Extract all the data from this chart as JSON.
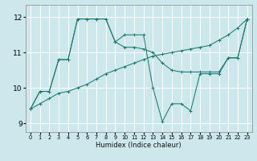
{
  "xlabel": "Humidex (Indice chaleur)",
  "bg_color": "#cce8ed",
  "grid_color": "#ffffff",
  "line_color": "#1e7a6e",
  "xlim": [
    -0.5,
    23.5
  ],
  "ylim": [
    8.75,
    12.35
  ],
  "xticks": [
    0,
    1,
    2,
    3,
    4,
    5,
    6,
    7,
    8,
    9,
    10,
    11,
    12,
    13,
    14,
    15,
    16,
    17,
    18,
    19,
    20,
    21,
    22,
    23
  ],
  "yticks": [
    9,
    10,
    11,
    12
  ],
  "line1_x": [
    0,
    1,
    2,
    3,
    4,
    5,
    6,
    7,
    8,
    9,
    10,
    11,
    12,
    13,
    14,
    15,
    16,
    17,
    18,
    19,
    20,
    21,
    22,
    23
  ],
  "line1_y": [
    9.4,
    9.9,
    9.9,
    10.8,
    10.8,
    11.95,
    11.95,
    11.95,
    11.95,
    11.3,
    11.15,
    11.15,
    11.1,
    11.0,
    10.7,
    10.5,
    10.45,
    10.45,
    10.45,
    10.45,
    10.45,
    10.85,
    10.85,
    11.95
  ],
  "line2_x": [
    0,
    1,
    2,
    3,
    4,
    5,
    6,
    7,
    8,
    9,
    10,
    11,
    12,
    13,
    14,
    15,
    16,
    17,
    18,
    19,
    20,
    21,
    22,
    23
  ],
  "line2_y": [
    9.4,
    9.9,
    9.9,
    10.8,
    10.8,
    11.95,
    11.95,
    11.95,
    11.95,
    11.3,
    11.5,
    11.5,
    11.5,
    10.0,
    9.05,
    9.55,
    9.55,
    9.35,
    10.4,
    10.4,
    10.4,
    10.85,
    10.85,
    11.95
  ],
  "line3_x": [
    0,
    1,
    2,
    3,
    4,
    5,
    6,
    7,
    8,
    9,
    10,
    11,
    12,
    13,
    14,
    15,
    16,
    17,
    18,
    19,
    20,
    21,
    22,
    23
  ],
  "line3_y": [
    9.4,
    9.55,
    9.7,
    9.85,
    9.9,
    10.0,
    10.1,
    10.25,
    10.4,
    10.5,
    10.6,
    10.7,
    10.8,
    10.9,
    10.95,
    11.0,
    11.05,
    11.1,
    11.15,
    11.2,
    11.35,
    11.5,
    11.7,
    11.95
  ]
}
